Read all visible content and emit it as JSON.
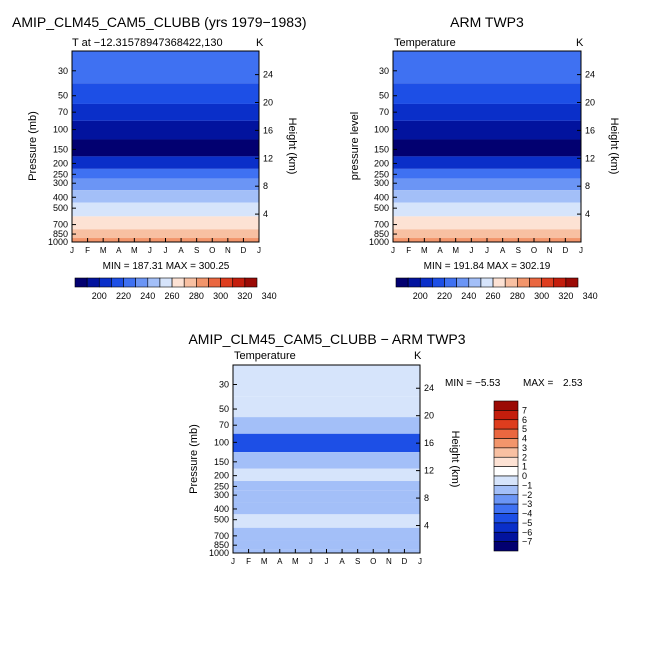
{
  "chart_data": [
    {
      "type": "heatmap",
      "title": "AMIP_CLM45_CAM5_CLUBB (yrs 1979−1983)",
      "subtitle_left": "T at −12.31578947368422,130",
      "subtitle_right": "K",
      "ylabel": "Pressure (mb)",
      "ylabel_right": "Height (km)",
      "x_ticks": [
        "J",
        "F",
        "M",
        "A",
        "M",
        "J",
        "J",
        "A",
        "S",
        "O",
        "N",
        "D",
        "J"
      ],
      "y_ticks": [
        30,
        50,
        70,
        100,
        150,
        200,
        250,
        300,
        400,
        500,
        700,
        850,
        1000
      ],
      "y_right_ticks": [
        24,
        20,
        16,
        12,
        8,
        4
      ],
      "stats": "MIN = 187.31  MAX = 300.25",
      "colorbar": {
        "labels": [
          "200",
          "220",
          "240",
          "260",
          "280",
          "300",
          "320",
          "340"
        ],
        "colors": [
          "#020070",
          "#02139e",
          "#0a2fc9",
          "#1d4fe6",
          "#3f71f2",
          "#6b95f5",
          "#a3bff8",
          "#d6e4fb",
          "#fde2d4",
          "#f8c0a2",
          "#f2956b",
          "#ea6740",
          "#de3d1e",
          "#c41d0c",
          "#9b0a05"
        ]
      },
      "levels": [
        {
          "p": 30,
          "c": 4
        },
        {
          "p": 50,
          "c": 3
        },
        {
          "p": 70,
          "c": 2
        },
        {
          "p": 100,
          "c": 1
        },
        {
          "p": 150,
          "c": 0
        },
        {
          "p": 200,
          "c": 2
        },
        {
          "p": 250,
          "c": 4
        },
        {
          "p": 300,
          "c": 5
        },
        {
          "p": 400,
          "c": 6
        },
        {
          "p": 500,
          "c": 7
        },
        {
          "p": 700,
          "c": 8
        },
        {
          "p": 850,
          "c": 9
        },
        {
          "p": 1000,
          "c": 10
        }
      ]
    },
    {
      "type": "heatmap",
      "title": "ARM TWP3",
      "subtitle_left": "Temperature",
      "subtitle_right": "K",
      "ylabel": "pressure level",
      "ylabel_right": "Height (km)",
      "x_ticks": [
        "J",
        "F",
        "M",
        "A",
        "M",
        "J",
        "J",
        "A",
        "S",
        "O",
        "N",
        "D",
        "J"
      ],
      "y_ticks": [
        30,
        50,
        70,
        100,
        150,
        200,
        250,
        300,
        400,
        500,
        700,
        850,
        1000
      ],
      "y_right_ticks": [
        24,
        20,
        16,
        12,
        8,
        4
      ],
      "stats": "MIN = 191.84  MAX = 302.19",
      "colorbar": {
        "labels": [
          "200",
          "220",
          "240",
          "260",
          "280",
          "300",
          "320",
          "340"
        ],
        "colors": [
          "#020070",
          "#02139e",
          "#0a2fc9",
          "#1d4fe6",
          "#3f71f2",
          "#6b95f5",
          "#a3bff8",
          "#d6e4fb",
          "#fde2d4",
          "#f8c0a2",
          "#f2956b",
          "#ea6740",
          "#de3d1e",
          "#c41d0c",
          "#9b0a05"
        ]
      },
      "levels": [
        {
          "p": 30,
          "c": 4
        },
        {
          "p": 50,
          "c": 3
        },
        {
          "p": 70,
          "c": 2
        },
        {
          "p": 100,
          "c": 1
        },
        {
          "p": 150,
          "c": 0
        },
        {
          "p": 200,
          "c": 2
        },
        {
          "p": 250,
          "c": 4
        },
        {
          "p": 300,
          "c": 5
        },
        {
          "p": 400,
          "c": 6
        },
        {
          "p": 500,
          "c": 7
        },
        {
          "p": 700,
          "c": 8
        },
        {
          "p": 850,
          "c": 9
        },
        {
          "p": 1000,
          "c": 10
        }
      ]
    },
    {
      "type": "heatmap",
      "title": "AMIP_CLM45_CAM5_CLUBB − ARM TWP3",
      "subtitle_left": "Temperature",
      "subtitle_right": "K",
      "ylabel": "Pressure (mb)",
      "ylabel_right": "Height (km)",
      "x_ticks": [
        "J",
        "F",
        "M",
        "A",
        "M",
        "J",
        "J",
        "A",
        "S",
        "O",
        "N",
        "D",
        "J"
      ],
      "y_ticks": [
        30,
        50,
        70,
        100,
        150,
        200,
        250,
        300,
        400,
        500,
        700,
        850,
        1000
      ],
      "y_right_ticks": [
        24,
        20,
        16,
        12,
        8,
        4
      ],
      "stats_min_label": "MIN =",
      "stats_min": "−5.53",
      "stats_max_label": "MAX =",
      "stats_max": "2.53",
      "colorbar": {
        "labels": [
          "7",
          "6",
          "5",
          "4",
          "3",
          "2",
          "1",
          "0",
          "−1",
          "−2",
          "−3",
          "−4",
          "−5",
          "−6",
          "−7"
        ],
        "colors": [
          "#9b0a05",
          "#c41d0c",
          "#de3d1e",
          "#ea6740",
          "#f2956b",
          "#f8c0a2",
          "#fde2d4",
          "#ffffff",
          "#d6e4fb",
          "#a3bff8",
          "#6b95f5",
          "#3f71f2",
          "#1d4fe6",
          "#0a2fc9",
          "#02139e",
          "#020070"
        ]
      },
      "levels": [
        {
          "p": 30,
          "c": 8
        },
        {
          "p": 50,
          "c": 8
        },
        {
          "p": 70,
          "c": 9
        },
        {
          "p": 100,
          "c": 12
        },
        {
          "p": 150,
          "c": 9
        },
        {
          "p": 200,
          "c": 8
        },
        {
          "p": 250,
          "c": 9
        },
        {
          "p": 300,
          "c": 9
        },
        {
          "p": 400,
          "c": 9
        },
        {
          "p": 500,
          "c": 8
        },
        {
          "p": 700,
          "c": 9
        },
        {
          "p": 850,
          "c": 9
        },
        {
          "p": 1000,
          "c": 9
        }
      ]
    }
  ]
}
